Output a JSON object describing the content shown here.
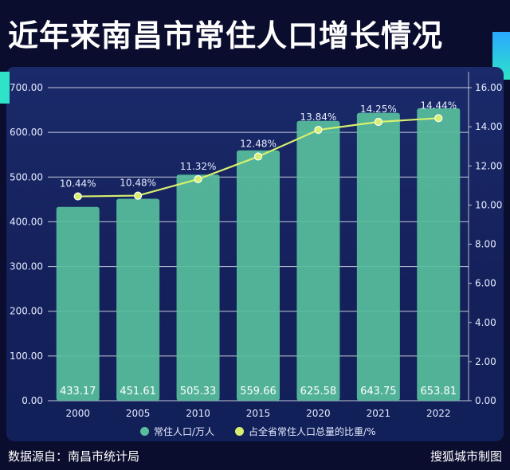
{
  "header": {
    "title": "近年来南昌市常住人口增长情况"
  },
  "footer": {
    "source": "数据源自：南昌市统计局",
    "credit": "搜狐城市制图"
  },
  "colors": {
    "bar": "#58bf9d",
    "line": "#d7ef6e",
    "background": "#0b0d2e"
  },
  "chart_data": {
    "type": "bar",
    "categories": [
      "2000",
      "2005",
      "2010",
      "2015",
      "2020",
      "2021",
      "2022"
    ],
    "series": [
      {
        "name": "常住人口/万人",
        "type": "bar",
        "axis": "left",
        "values": [
          433.17,
          451.61,
          505.33,
          559.66,
          625.58,
          643.75,
          653.81
        ],
        "labels": [
          "433.17",
          "451.61",
          "505.33",
          "559.66",
          "625.58",
          "643.75",
          "653.81"
        ]
      },
      {
        "name": "占全省常住人口总量的比重/%",
        "type": "line",
        "axis": "right",
        "values": [
          10.44,
          10.48,
          11.32,
          12.48,
          13.84,
          14.25,
          14.44
        ],
        "labels": [
          "10.44%",
          "10.48%",
          "11.32%",
          "12.48%",
          "13.84%",
          "14.25%",
          "14.44%"
        ]
      }
    ],
    "y_left": {
      "range": [
        0,
        700
      ],
      "ticks": [
        0,
        100,
        200,
        300,
        400,
        500,
        600,
        700
      ],
      "tick_labels": [
        "0.00",
        "100.00",
        "200.00",
        "300.00",
        "400.00",
        "500.00",
        "600.00",
        "700.00"
      ]
    },
    "y_right": {
      "range": [
        0,
        16
      ],
      "ticks": [
        0,
        2,
        4,
        6,
        8,
        10,
        12,
        14,
        16
      ],
      "tick_labels": [
        "0.00",
        "2.00",
        "4.00",
        "6.00",
        "8.00",
        "10.00",
        "12.00",
        "14.00",
        "16.00"
      ]
    },
    "grid": true,
    "legend": "bottom"
  }
}
